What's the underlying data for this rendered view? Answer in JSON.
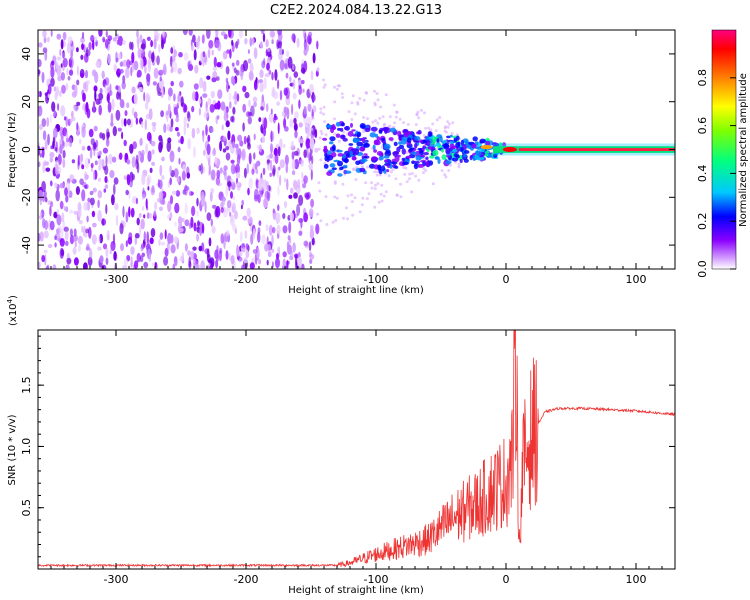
{
  "title": "C2E2.2024.084.13.22.G13",
  "chart_data": [
    {
      "type": "heatmap",
      "xlabel": "Height of straight line (km)",
      "ylabel": "Frequency (Hz)",
      "xlim": [
        -360,
        130
      ],
      "ylim": [
        -50,
        50
      ],
      "xticks": [
        -300,
        -200,
        -100,
        0,
        100
      ],
      "yticks": [
        -40,
        -20,
        0,
        20,
        40
      ],
      "colorbar": {
        "label": "Normalized spectral amplitude",
        "range": [
          0.0,
          1.0
        ],
        "ticks": [
          0.0,
          0.2,
          0.4,
          0.6,
          0.8
        ],
        "tick_labels": [
          "0.0",
          "0.2",
          "0.4",
          "0.6",
          "0.8"
        ],
        "colors": [
          "#ffffff",
          "#d9a8ff",
          "#8a00ff",
          "#0000ff",
          "#00c8ff",
          "#00ff80",
          "#80ff00",
          "#ffff00",
          "#ff8000",
          "#ff0000",
          "#ff0080"
        ]
      },
      "features": {
        "noise_region_x": [
          -360,
          -145
        ],
        "signal_start_x": -145,
        "tone_frequency": 0,
        "peak_x": 3
      }
    },
    {
      "type": "line",
      "xlabel": "Height of straight line (km)",
      "ylabel": "SNR (10 * v/v)",
      "y_scale_label": "(x10",
      "y_scale_exponent": "4",
      "xlim": [
        -360,
        130
      ],
      "ylim": [
        0,
        1.95
      ],
      "xticks": [
        -300,
        -200,
        -100,
        0,
        100
      ],
      "yticks": [
        0.5,
        1.0,
        1.5
      ],
      "ytick_labels": [
        "0.5",
        "1.0",
        "1.5"
      ],
      "color": "#ee3333",
      "x": [
        -360,
        -300,
        -200,
        -130,
        -120,
        -100,
        -80,
        -60,
        -40,
        -20,
        -10,
        0,
        5,
        8,
        10,
        13,
        20,
        30,
        40,
        60,
        80,
        100,
        130
      ],
      "y": [
        0.03,
        0.03,
        0.03,
        0.03,
        0.05,
        0.12,
        0.18,
        0.24,
        0.42,
        0.55,
        0.65,
        0.72,
        0.9,
        1.95,
        0.15,
        0.85,
        1.1,
        1.28,
        1.31,
        1.31,
        1.3,
        1.29,
        1.26
      ]
    }
  ]
}
